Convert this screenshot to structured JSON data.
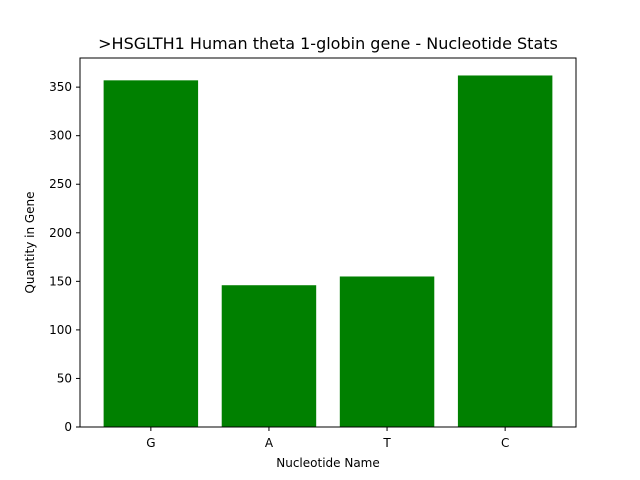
{
  "chart_data": {
    "type": "bar",
    "title": ">HSGLTH1 Human theta 1-globin gene - Nucleotide Stats",
    "xlabel": "Nucleotide Name",
    "ylabel": "Quantity in Gene",
    "categories": [
      "G",
      "A",
      "T",
      "C"
    ],
    "values": [
      357,
      146,
      155,
      362
    ],
    "ylim": [
      0,
      380
    ],
    "yticks": [
      0,
      50,
      100,
      150,
      200,
      250,
      300,
      350
    ],
    "bar_color": "#008000",
    "grid": false,
    "legend": "none"
  }
}
